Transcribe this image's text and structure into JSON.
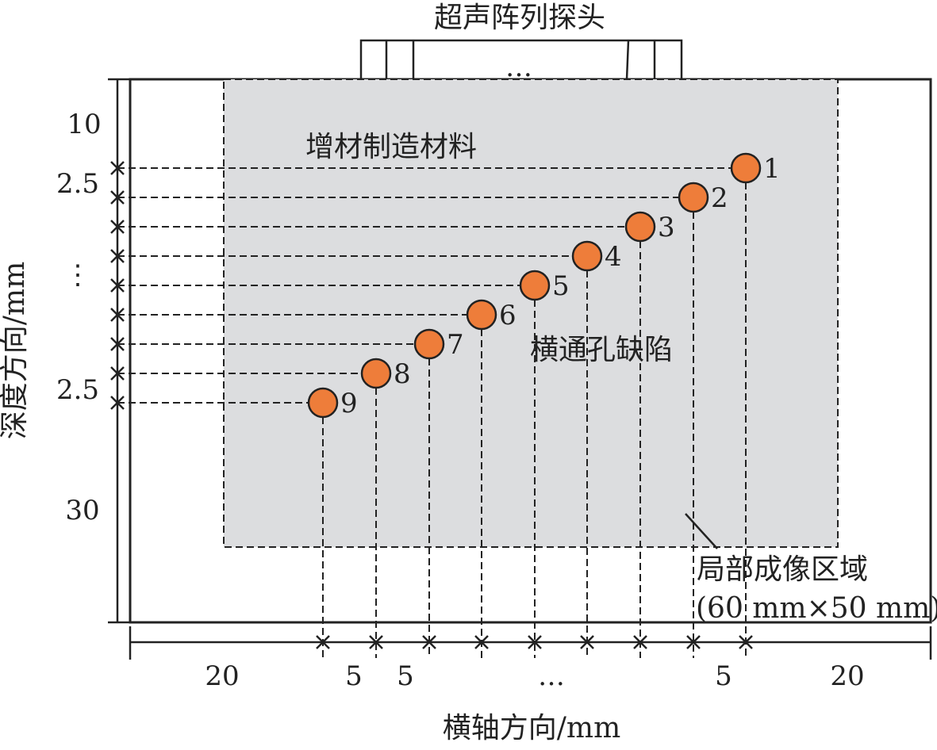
{
  "probe": {
    "label": "超声阵列探头",
    "dots": "…"
  },
  "material": {
    "label": "增材制造材料"
  },
  "defect_label": "横通孔缺陷",
  "region": {
    "label": "局部成像区域",
    "size": "(60 mm×50 mm)"
  },
  "defects": [
    "1",
    "2",
    "3",
    "4",
    "5",
    "6",
    "7",
    "8",
    "9"
  ],
  "colors": {
    "defect_fill": "#ee7d3a",
    "region_fill": "#dcdddf",
    "line": "#222222"
  },
  "y_axis": {
    "title": "深度方向/mm",
    "labels": {
      "top": "10",
      "pitch_upper": "2.5",
      "dots": "⋮",
      "pitch_lower": "2.5",
      "bottom": "30"
    }
  },
  "x_axis": {
    "title": "横轴方向/mm",
    "labels": {
      "left": "20",
      "pitch1": "5",
      "pitch2": "5",
      "dots": "…",
      "pitch3": "5",
      "right": "20"
    }
  }
}
